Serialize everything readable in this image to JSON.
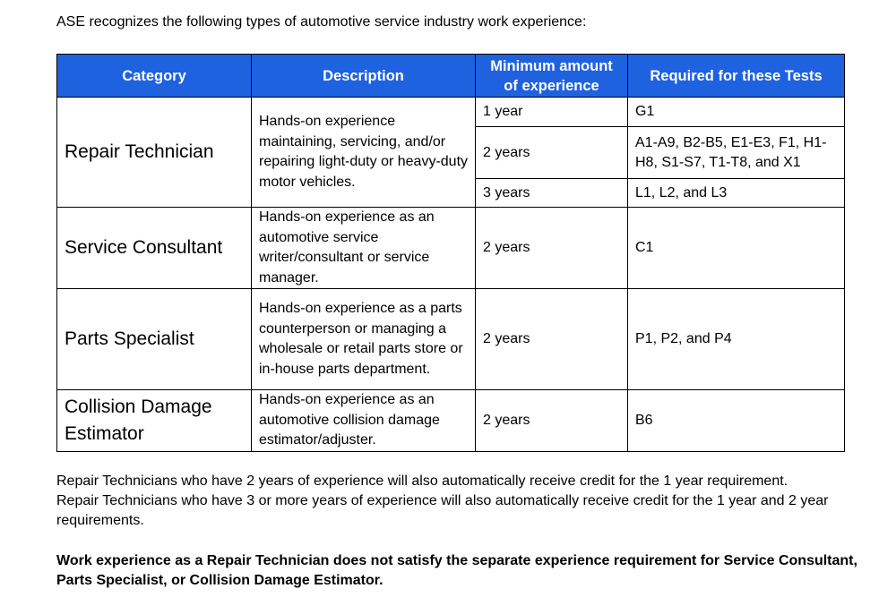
{
  "intro": "ASE recognizes the following types of automotive service industry work experience:",
  "table": {
    "headers": {
      "category": "Category",
      "description": "Description",
      "minimum": "Minimum amount of experience",
      "tests": "Required for these Tests"
    },
    "rows": [
      {
        "category": "Repair Technician",
        "description": "Hands-on experience maintaining, servicing, and/or repairing light-duty or heavy-duty motor vehicles.",
        "sub": [
          {
            "years": "1 year",
            "tests": "G1"
          },
          {
            "years": "2 years",
            "tests": "A1-A9, B2-B5, E1-E3, F1, H1-H8, S1-S7, T1-T8, and X1"
          },
          {
            "years": "3 years",
            "tests": "L1, L2, and L3"
          }
        ]
      },
      {
        "category": "Service Consultant",
        "description": "Hands-on experience as an automotive service writer/consultant or service manager.",
        "sub": [
          {
            "years": "2 years",
            "tests": "C1"
          }
        ]
      },
      {
        "category": "Parts Specialist",
        "description": "Hands-on experience as a parts counterperson or managing a wholesale or retail parts store or in-house parts department.",
        "sub": [
          {
            "years": "2 years",
            "tests": "P1, P2, and P4"
          }
        ]
      },
      {
        "category": "Collision Damage Estimator",
        "description": "Hands-on experience as an automotive collision damage estimator/adjuster.",
        "sub": [
          {
            "years": "2 years",
            "tests": "B6"
          }
        ]
      }
    ]
  },
  "notes": [
    "Repair Technicians who have 2 years of experience will also automatically receive credit for the 1 year requirement.",
    "Repair Technicians who have 3 or more years of experience will also automatically receive credit for the 1 year and 2 year requirements."
  ],
  "bold_note": "Work experience as a Repair Technician does not satisfy the separate experience requirement for Service Consultant, Parts Specialist, or Collision Damage Estimator."
}
